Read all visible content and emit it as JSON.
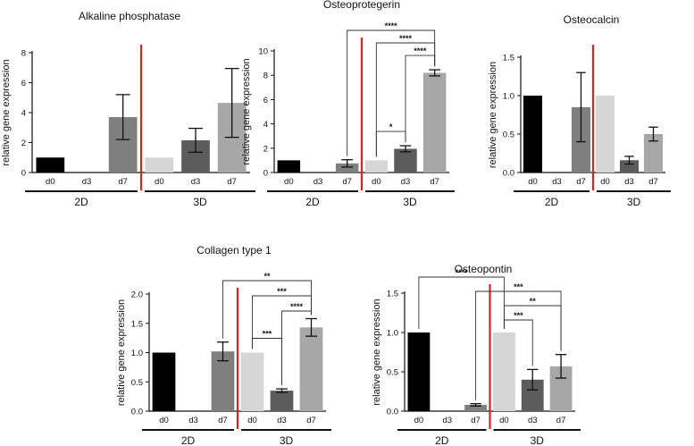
{
  "colors": {
    "d0_2D": "#000000",
    "d3_2D": "#3a3a3a",
    "d7_2D": "#7f7f7f",
    "d0_3D": "#d6d6d6",
    "d3_3D": "#5c5c5c",
    "d7_3D": "#a7a7a7",
    "divider": "#dd2222"
  },
  "chart_data": [
    {
      "type": "bar",
      "title": "Alkaline phosphatase",
      "ylabel": "relative gene expression",
      "ylim": [
        0,
        8
      ],
      "yticks": [
        "0",
        "2",
        "4",
        "6",
        "8"
      ],
      "categories": [
        "d0",
        "d3",
        "d7",
        "d0",
        "d3",
        "d7"
      ],
      "groups": [
        "2D",
        "3D"
      ],
      "values": [
        1.0,
        0,
        3.7,
        1.0,
        2.15,
        4.65
      ],
      "errors": [
        0,
        0,
        1.5,
        0,
        0.8,
        2.3
      ],
      "significance": []
    },
    {
      "type": "bar",
      "title": "Osteoprotegerin",
      "ylabel": "relative gene expression",
      "ylim": [
        0,
        10
      ],
      "yticks": [
        "0",
        "2",
        "4",
        "6",
        "8",
        "10"
      ],
      "categories": [
        "d0",
        "d3",
        "d7",
        "d0",
        "d3",
        "d7"
      ],
      "groups": [
        "2D",
        "3D"
      ],
      "values": [
        1.0,
        0,
        0.75,
        1.0,
        1.95,
        8.2
      ],
      "errors": [
        0,
        0,
        0.3,
        0,
        0.25,
        0.25
      ],
      "significance": [
        {
          "from": 2,
          "to": 5,
          "label": "****"
        },
        {
          "from": 3,
          "to": 5,
          "label": "****"
        },
        {
          "from": 4,
          "to": 5,
          "label": "****"
        },
        {
          "from": 3,
          "to": 4,
          "label": "*"
        }
      ]
    },
    {
      "type": "bar",
      "title": "Osteocalcin",
      "ylabel": "relative gene expression",
      "ylim": [
        0,
        1.5
      ],
      "yticks": [
        "0.0",
        "0.5",
        "1.0",
        "1.5"
      ],
      "categories": [
        "d0",
        "d3",
        "d7",
        "d0",
        "d3",
        "d7"
      ],
      "groups": [
        "2D",
        "3D"
      ],
      "values": [
        1.0,
        0,
        0.85,
        1.0,
        0.16,
        0.5
      ],
      "errors": [
        0,
        0,
        0.45,
        0,
        0.05,
        0.09
      ],
      "significance": []
    },
    {
      "type": "bar",
      "title": "Collagen type 1",
      "ylabel": "relative gene expression",
      "ylim": [
        0,
        2.0
      ],
      "yticks": [
        "0.0",
        "0.5",
        "1.0",
        "1.5",
        "2.0"
      ],
      "categories": [
        "d0",
        "d3",
        "d7",
        "d0",
        "d3",
        "d7"
      ],
      "groups": [
        "2D",
        "3D"
      ],
      "values": [
        1.0,
        0,
        1.02,
        1.0,
        0.35,
        1.43
      ],
      "errors": [
        0,
        0,
        0.16,
        0,
        0.03,
        0.15
      ],
      "significance": [
        {
          "from": 2,
          "to": 5,
          "label": "**"
        },
        {
          "from": 3,
          "to": 5,
          "label": "***"
        },
        {
          "from": 4,
          "to": 5,
          "label": "****"
        },
        {
          "from": 3,
          "to": 4,
          "label": "***"
        }
      ]
    },
    {
      "type": "bar",
      "title": "Osteopontin",
      "ylabel": "relative gene expression",
      "ylim": [
        0,
        1.5
      ],
      "yticks": [
        "0.0",
        "0.5",
        "1.0",
        "1.5"
      ],
      "categories": [
        "d0",
        "d3",
        "d7",
        "d0",
        "d3",
        "d7"
      ],
      "groups": [
        "2D",
        "3D"
      ],
      "values": [
        1.0,
        0,
        0.08,
        1.0,
        0.4,
        0.57
      ],
      "errors": [
        0,
        0,
        0.015,
        0,
        0.13,
        0.15
      ],
      "significance": [
        {
          "from": 0,
          "to": 3,
          "label": "****"
        },
        {
          "from": 2,
          "to": 5,
          "label": "***"
        },
        {
          "from": 3,
          "to": 5,
          "label": "**"
        },
        {
          "from": 3,
          "to": 4,
          "label": "***"
        }
      ]
    }
  ]
}
